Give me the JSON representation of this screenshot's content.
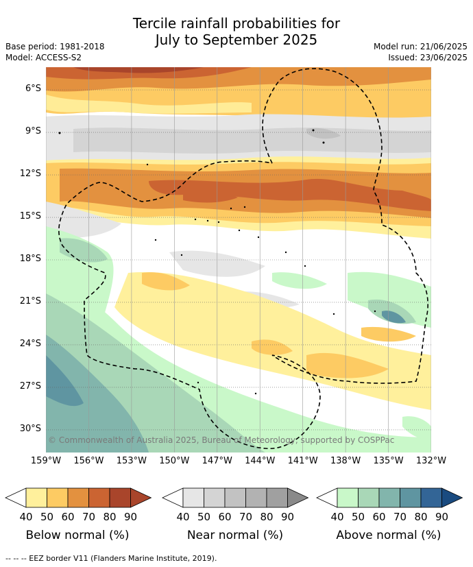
{
  "header": {
    "title_line1": "Tercile rainfall probabilities for",
    "title_line2": "July to September 2025",
    "base_period": "Base period: 1981-2018",
    "model": "Model: ACCESS-S2",
    "model_run": "Model run: 21/06/2025",
    "issued": "Issued: 23/06/2025"
  },
  "map": {
    "latitude_labels": [
      "6°S",
      "9°S",
      "12°S",
      "15°S",
      "18°S",
      "21°S",
      "24°S",
      "27°S",
      "30°S"
    ],
    "latitudes": [
      6,
      9,
      12,
      15,
      18,
      21,
      24,
      27,
      30
    ],
    "longitude_labels": [
      "159°W",
      "156°W",
      "153°W",
      "150°W",
      "147°W",
      "144°W",
      "141°W",
      "138°W",
      "135°W",
      "132°W"
    ],
    "longitudes": [
      159,
      156,
      153,
      150,
      147,
      144,
      141,
      138,
      135,
      132
    ],
    "lat_range": [
      4.4,
      31.6
    ],
    "lon_range": [
      159,
      132
    ],
    "copyright": "© Commonwealth of Australia 2025, Bureau of Meteorology, supported by COSPPac",
    "colors": {
      "below": [
        "#fff09c",
        "#fdcb63",
        "#e3913f",
        "#cb6432",
        "#a9452b"
      ],
      "near": [
        "#e6e6e6",
        "#d4d4d4",
        "#c2c2c2",
        "#b2b2b2",
        "#a0a0a0",
        "#8a8a8a"
      ],
      "above": [
        "#c9f8c9",
        "#a9d7b7",
        "#82b5ac",
        "#5f95a1",
        "#336596",
        "#1a4b80"
      ]
    }
  },
  "legend": {
    "ticks": [
      "40",
      "50",
      "60",
      "70",
      "80",
      "90"
    ],
    "below_title": "Below normal (%)",
    "near_title": "Near normal (%)",
    "above_title": "Above normal (%)"
  },
  "footer": {
    "eez_note": "--  --  -- EEZ border V11 (Flanders Marine Institute, 2019)."
  }
}
